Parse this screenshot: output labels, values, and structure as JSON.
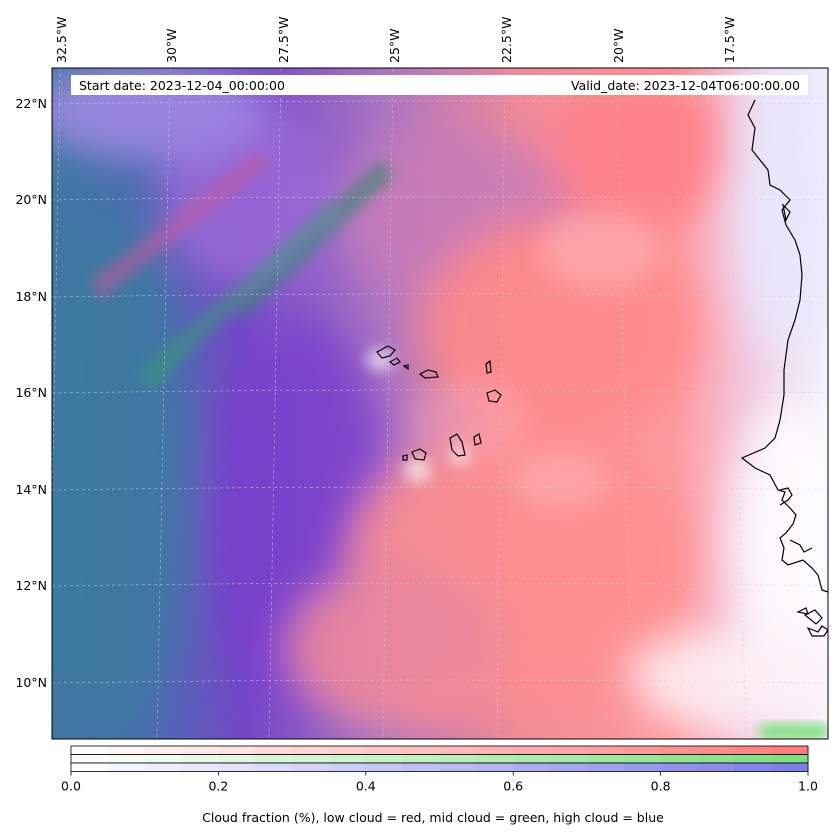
{
  "map": {
    "header": {
      "start_date": "Start date: 2023-12-04_00:00:00",
      "valid_date": "Valid_date: 2023-12-04T06:00:00.00"
    },
    "lon_labels": [
      "32.5°W",
      "30°W",
      "27.5°W",
      "25°W",
      "22.5°W",
      "20°W",
      "17.5°W"
    ],
    "lat_labels": [
      "22°N",
      "20°N",
      "18°N",
      "16°N",
      "14°N",
      "12°N",
      "10°N"
    ],
    "extent": {
      "lon_min": -32.6,
      "lon_max": -15.4,
      "lat_min": 8.9,
      "lat_max": 22.8
    },
    "layers": {
      "low_cloud": "red",
      "mid_cloud": "green",
      "high_cloud": "blue"
    },
    "colors": {
      "low": "#ff7a7a",
      "mid": "#7ae07a",
      "high": "#7a7aee",
      "ocean_deep": "#3f72a6",
      "coast": "#000000"
    }
  },
  "colorbar": {
    "ticks": [
      "0.0",
      "0.2",
      "0.4",
      "0.6",
      "0.8",
      "1.0"
    ],
    "tick_values": [
      0,
      0.2,
      0.4,
      0.6,
      0.8,
      1.0
    ],
    "label": "Cloud fraction (%), low cloud = red, mid cloud = green, high cloud = blue",
    "bars": [
      "low",
      "mid",
      "high"
    ],
    "segments": 20
  }
}
